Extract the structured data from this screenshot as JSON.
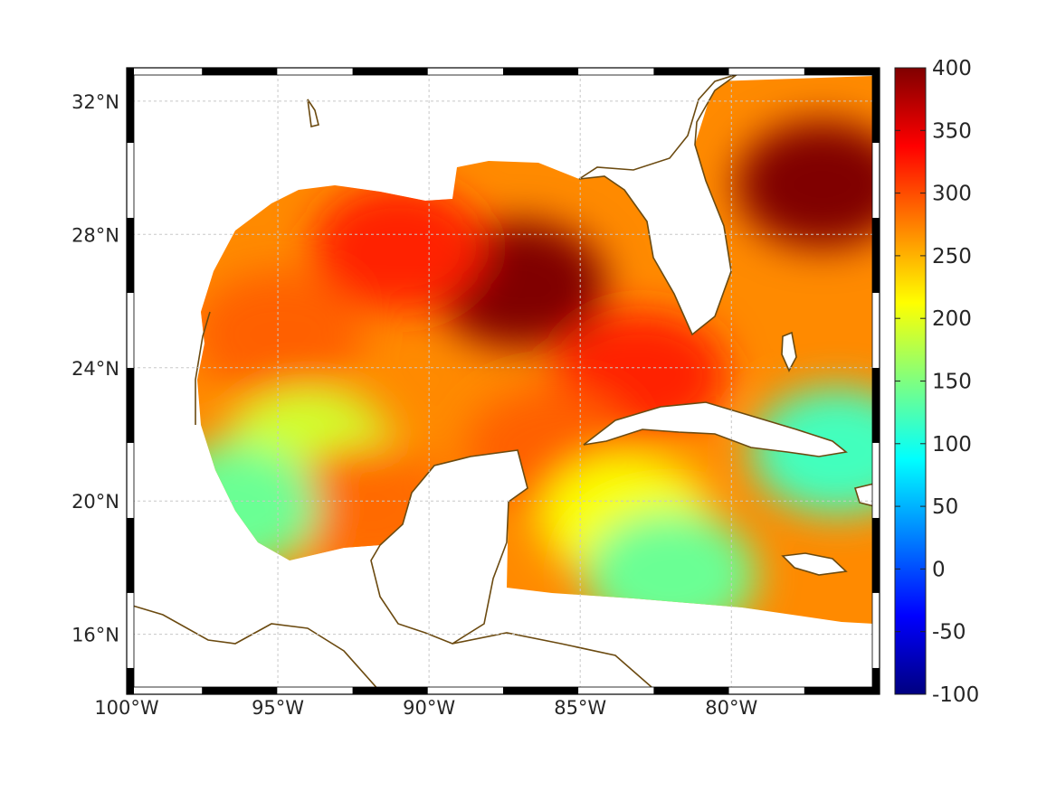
{
  "map": {
    "projection": "equidistant-cylindrical",
    "lon_range": [
      -100,
      -75.1
    ],
    "lat_range": [
      14.2,
      33.0
    ],
    "grid": true,
    "xticks": [
      {
        "lon": -100,
        "label": "100°W"
      },
      {
        "lon": -95,
        "label": "95°W"
      },
      {
        "lon": -90,
        "label": "90°W"
      },
      {
        "lon": -85,
        "label": "85°W"
      },
      {
        "lon": -80,
        "label": "80°W"
      }
    ],
    "yticks": [
      {
        "lat": 32,
        "label": "32°N"
      },
      {
        "lat": 28,
        "label": "28°N"
      },
      {
        "lat": 24,
        "label": "24°N"
      },
      {
        "lat": 20,
        "label": "20°N"
      },
      {
        "lat": 16,
        "label": "16°N"
      }
    ],
    "coastline_color": "#6b4a10"
  },
  "colorbar": {
    "colormap": "jet",
    "range": [
      -100,
      400
    ],
    "ticks": [
      "400",
      "350",
      "300",
      "250",
      "200",
      "150",
      "100",
      "50",
      "0",
      "-50",
      "-100"
    ]
  },
  "field_regions": [
    {
      "name": "central-gulf-max",
      "lon": -87.0,
      "lat": 26.5,
      "value": 400
    },
    {
      "name": "atlantic-east-florida",
      "lon": -77.0,
      "lat": 29.5,
      "value": 400
    },
    {
      "name": "northern-gulf",
      "lon": -91.0,
      "lat": 27.6,
      "value": 320
    },
    {
      "name": "western-gulf",
      "lon": -95.0,
      "lat": 25.0,
      "value": 290
    },
    {
      "name": "bay-of-campeche",
      "lon": -94.0,
      "lat": 21.5,
      "value": 190
    },
    {
      "name": "campeche-eddy",
      "lon": -92.0,
      "lat": 19.8,
      "value": 285
    },
    {
      "name": "southern-west-gulf",
      "lon": -96.5,
      "lat": 19.8,
      "value": 140
    },
    {
      "name": "straits-of-florida",
      "lon": -83.0,
      "lat": 23.8,
      "value": 320
    },
    {
      "name": "yucatan-channel",
      "lon": -86.0,
      "lat": 21.5,
      "value": 290
    },
    {
      "name": "caribbean-central",
      "lon": -83.5,
      "lat": 19.5,
      "value": 210
    },
    {
      "name": "caribbean-south",
      "lon": -82.0,
      "lat": 17.8,
      "value": 140
    },
    {
      "name": "bahamas-south",
      "lon": -76.5,
      "lat": 21.5,
      "value": 120
    }
  ]
}
